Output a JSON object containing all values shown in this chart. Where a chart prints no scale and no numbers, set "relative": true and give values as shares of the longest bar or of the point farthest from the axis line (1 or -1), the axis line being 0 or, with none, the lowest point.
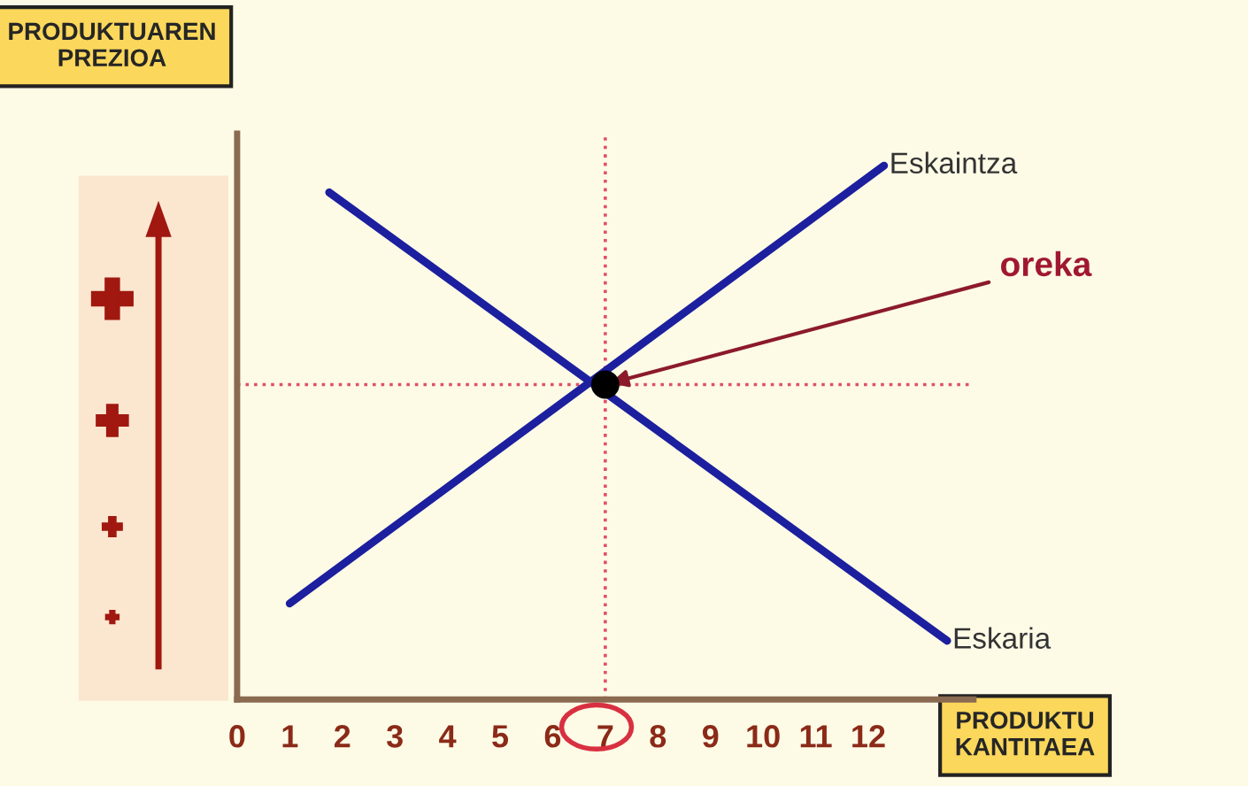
{
  "chart_data": {
    "type": "line",
    "relative": true,
    "xlabel": "PRODUKTU\nKANTITAEA",
    "ylabel": "PRODUKTUAREN\nPREZIOA",
    "xlim": [
      0,
      14
    ],
    "xticks": [
      0,
      1,
      2,
      3,
      4,
      5,
      6,
      7,
      8,
      9,
      10,
      11,
      12
    ],
    "tick_labels": "x",
    "grid": false,
    "legend": false,
    "series": [
      {
        "name": "Eskaintza",
        "color": "#1c1f9e",
        "x": [
          1.0,
          12.3
        ],
        "values": [
          0.18,
          1.0
        ]
      },
      {
        "name": "Eskaria",
        "color": "#1c1f9e",
        "x": [
          1.75,
          13.5
        ],
        "values": [
          0.95,
          0.11
        ]
      },
      {
        "type": "scatter",
        "color": "#000000",
        "x": [
          7
        ],
        "values": [
          0.59
        ]
      }
    ],
    "ref_lines": [
      {
        "axis": "x",
        "value": 7,
        "color": "#e0506a",
        "line_style": "dotted"
      },
      {
        "axis": "y",
        "value": 0.59,
        "color": "#e0506a",
        "line_style": "dotted"
      }
    ],
    "annotations": [
      {
        "text": "oreka",
        "x": 7,
        "y": 0.59
      }
    ]
  }
}
